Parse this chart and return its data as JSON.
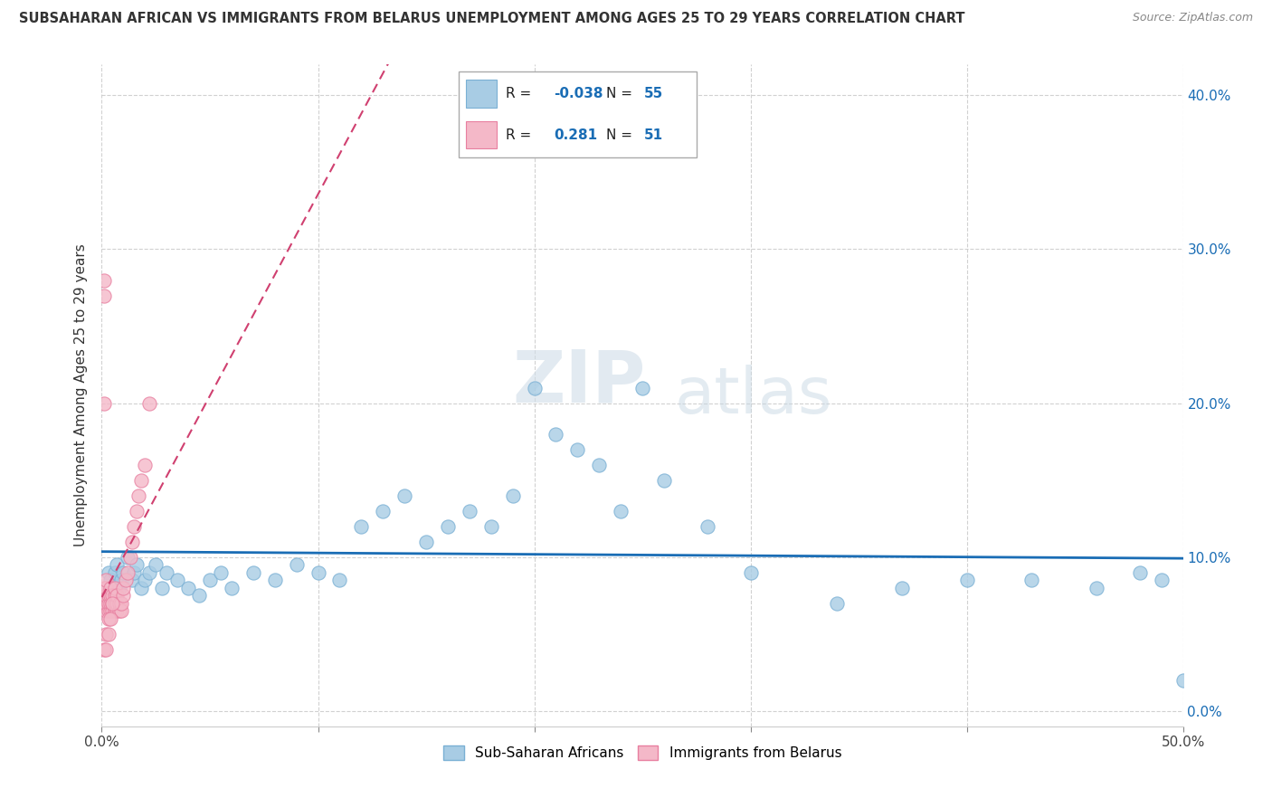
{
  "title": "SUBSAHARAN AFRICAN VS IMMIGRANTS FROM BELARUS UNEMPLOYMENT AMONG AGES 25 TO 29 YEARS CORRELATION CHART",
  "source": "Source: ZipAtlas.com",
  "ylabel": "Unemployment Among Ages 25 to 29 years",
  "xlim": [
    0.0,
    0.5
  ],
  "ylim": [
    -0.01,
    0.42
  ],
  "xticks": [
    0.0,
    0.1,
    0.2,
    0.3,
    0.4,
    0.5
  ],
  "xticklabels": [
    "0.0%",
    "",
    "",
    "",
    "",
    "50.0%"
  ],
  "yticks": [
    0.0,
    0.1,
    0.2,
    0.3,
    0.4
  ],
  "yticklabels_right": [
    "0.0%",
    "10.0%",
    "20.0%",
    "30.0%",
    "40.0%"
  ],
  "blue_color": "#a8cce4",
  "pink_color": "#f4b8c8",
  "blue_edge": "#7ab0d4",
  "pink_edge": "#e87fa0",
  "trend_blue": "#1a6db5",
  "trend_pink": "#d04070",
  "R_blue": -0.038,
  "N_blue": 55,
  "R_pink": 0.281,
  "N_pink": 51,
  "legend_label_blue": "Sub-Saharan Africans",
  "legend_label_pink": "Immigrants from Belarus",
  "watermark_zip": "ZIP",
  "watermark_atlas": "atlas",
  "blue_x": [
    0.002,
    0.003,
    0.004,
    0.005,
    0.006,
    0.007,
    0.008,
    0.009,
    0.01,
    0.012,
    0.014,
    0.015,
    0.016,
    0.018,
    0.02,
    0.022,
    0.025,
    0.028,
    0.03,
    0.035,
    0.04,
    0.045,
    0.05,
    0.055,
    0.06,
    0.07,
    0.08,
    0.09,
    0.1,
    0.11,
    0.12,
    0.13,
    0.14,
    0.15,
    0.16,
    0.17,
    0.18,
    0.19,
    0.2,
    0.21,
    0.22,
    0.23,
    0.24,
    0.26,
    0.28,
    0.3,
    0.34,
    0.37,
    0.4,
    0.43,
    0.46,
    0.48,
    0.49,
    0.5,
    0.25
  ],
  "blue_y": [
    0.08,
    0.09,
    0.085,
    0.075,
    0.09,
    0.095,
    0.08,
    0.085,
    0.09,
    0.1,
    0.085,
    0.09,
    0.095,
    0.08,
    0.085,
    0.09,
    0.095,
    0.08,
    0.09,
    0.085,
    0.08,
    0.075,
    0.085,
    0.09,
    0.08,
    0.09,
    0.085,
    0.095,
    0.09,
    0.085,
    0.12,
    0.13,
    0.14,
    0.11,
    0.12,
    0.13,
    0.12,
    0.14,
    0.21,
    0.18,
    0.17,
    0.16,
    0.13,
    0.15,
    0.12,
    0.09,
    0.07,
    0.08,
    0.085,
    0.085,
    0.08,
    0.09,
    0.085,
    0.02,
    0.21
  ],
  "pink_x": [
    0.001,
    0.001,
    0.001,
    0.002,
    0.002,
    0.002,
    0.002,
    0.002,
    0.003,
    0.003,
    0.003,
    0.004,
    0.004,
    0.004,
    0.004,
    0.005,
    0.005,
    0.005,
    0.006,
    0.006,
    0.006,
    0.006,
    0.007,
    0.007,
    0.007,
    0.008,
    0.008,
    0.009,
    0.009,
    0.01,
    0.01,
    0.011,
    0.012,
    0.013,
    0.014,
    0.015,
    0.016,
    0.017,
    0.018,
    0.02,
    0.022,
    0.001,
    0.001,
    0.001,
    0.001,
    0.002,
    0.002,
    0.003,
    0.003,
    0.004,
    0.005
  ],
  "pink_y": [
    0.07,
    0.075,
    0.08,
    0.065,
    0.07,
    0.075,
    0.08,
    0.085,
    0.065,
    0.07,
    0.075,
    0.065,
    0.07,
    0.075,
    0.08,
    0.065,
    0.07,
    0.075,
    0.065,
    0.07,
    0.075,
    0.08,
    0.065,
    0.07,
    0.075,
    0.065,
    0.07,
    0.065,
    0.07,
    0.075,
    0.08,
    0.085,
    0.09,
    0.1,
    0.11,
    0.12,
    0.13,
    0.14,
    0.15,
    0.16,
    0.2,
    0.28,
    0.27,
    0.2,
    0.04,
    0.04,
    0.05,
    0.05,
    0.06,
    0.06,
    0.07
  ]
}
